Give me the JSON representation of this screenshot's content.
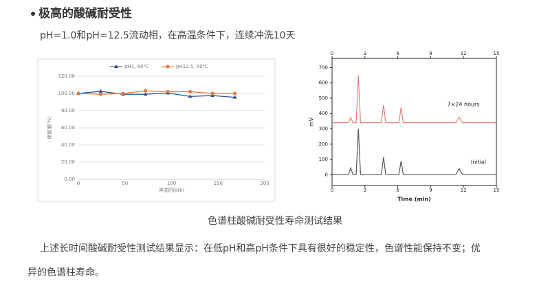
{
  "heading": "极高的酸碱耐受性",
  "subheading": "pH=1.0和pH=12.5流动相，在高温条件下，连续冲洗10天",
  "caption": "色谱柱酸碱耐受性寿命测试结果",
  "paragraph": [
    "上述长时间酸碱耐受性测试结果显示：在低pH和高pH条件下具有很好的稳定性，色谱性能保持不变；优",
    "异的色谱柱寿命。"
  ],
  "chart_data": [
    {
      "type": "line",
      "xlabel": "冲洗时间(h)",
      "ylabel": "保留值(%)",
      "x": [
        0,
        24,
        48,
        72,
        96,
        120,
        144,
        168
      ],
      "xlim": [
        0,
        200
      ],
      "xticks": [
        0,
        50,
        100,
        150,
        200
      ],
      "ylim": [
        0,
        120
      ],
      "yticks": [
        {
          "value": 0,
          "label": "0.00"
        },
        {
          "value": 20,
          "label": "20.00"
        },
        {
          "value": 40,
          "label": "40.00"
        },
        {
          "value": 60,
          "label": "60.00"
        },
        {
          "value": 80,
          "label": "80.00"
        },
        {
          "value": 100,
          "label": "100.00"
        },
        {
          "value": 120,
          "label": "120.00"
        }
      ],
      "grid": true,
      "legend": "top",
      "frame": false,
      "top_axis": false,
      "series": [
        {
          "name": "pH1, 60℃",
          "color": "#2f4b8f",
          "marker": "triangle",
          "values": [
            100,
            102.5,
            99,
            99,
            100.5,
            96.5,
            97.5,
            95.5
          ]
        },
        {
          "name": "pH12.5, 50℃",
          "color": "#e8743b",
          "marker": "circle",
          "values": [
            100,
            99,
            100,
            103,
            102,
            102,
            100,
            100
          ]
        }
      ]
    },
    {
      "type": "line",
      "xlabel": "Time (min)",
      "ylabel": "mV",
      "x": [
        0,
        1.5,
        1.7,
        1.9,
        2.2,
        2.4,
        2.6,
        4.5,
        4.7,
        4.9,
        6.1,
        6.3,
        6.5,
        11.3,
        11.6,
        11.9,
        15
      ],
      "xlim": [
        0,
        15
      ],
      "xticks": [
        0,
        3,
        6,
        9,
        12,
        15
      ],
      "ylim": [
        -70,
        760
      ],
      "yticks": [
        0,
        100,
        200,
        300,
        400,
        500,
        600,
        700
      ],
      "grid": false,
      "frame": true,
      "top_axis": true,
      "annotations": [
        "7×24 hours",
        "Initial"
      ],
      "series": [
        {
          "color": "#e77f7f",
          "values": [
            340,
            340,
            375,
            340,
            340,
            650,
            340,
            340,
            455,
            340,
            340,
            440,
            340,
            340,
            375,
            340,
            340
          ]
        },
        {
          "color": "#555555",
          "values": [
            2,
            2,
            45,
            2,
            2,
            300,
            2,
            2,
            115,
            2,
            2,
            90,
            2,
            2,
            40,
            2,
            2
          ]
        }
      ]
    }
  ]
}
